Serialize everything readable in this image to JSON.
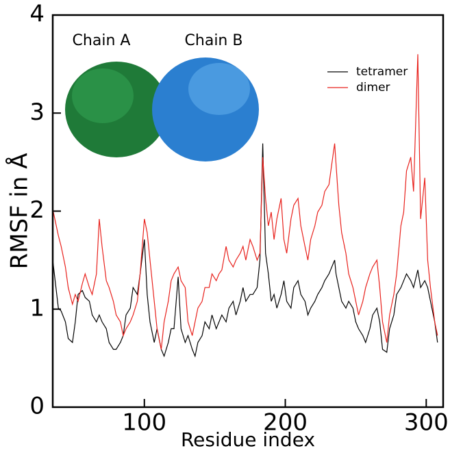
{
  "chart_data": {
    "type": "line",
    "xlabel": "Residue index",
    "ylabel": "RMSF in Å",
    "xlim": [
      35,
      312
    ],
    "xticks": [
      100,
      200,
      300
    ],
    "ylim": [
      0,
      4
    ],
    "yticks": [
      0,
      1,
      2,
      3,
      4
    ],
    "legend": "upper right",
    "annotations": [
      {
        "text": "Chain A"
      },
      {
        "text": "Chain B"
      }
    ],
    "x": [
      35,
      39,
      41,
      44,
      46,
      49,
      51,
      53,
      56,
      58,
      61,
      63,
      66,
      68,
      70,
      73,
      75,
      78,
      80,
      83,
      85,
      87,
      90,
      92,
      95,
      97,
      100,
      102,
      104,
      107,
      109,
      112,
      114,
      117,
      119,
      121,
      124,
      126,
      129,
      131,
      134,
      136,
      138,
      141,
      143,
      146,
      148,
      151,
      153,
      155,
      158,
      160,
      163,
      165,
      168,
      170,
      172,
      175,
      177,
      180,
      182,
      184,
      186,
      188,
      190,
      192,
      194,
      197,
      199,
      201,
      204,
      206,
      209,
      211,
      214,
      216,
      218,
      221,
      223,
      226,
      228,
      231,
      233,
      235,
      236,
      238,
      240,
      243,
      245,
      248,
      250,
      252,
      255,
      257,
      260,
      262,
      265,
      267,
      269,
      272,
      274,
      277,
      279,
      282,
      284,
      286,
      289,
      291,
      294,
      296,
      299,
      301,
      303,
      306,
      308
    ],
    "series": [
      {
        "name": "tetramer",
        "color": "#000000",
        "values": [
          1.5,
          1.01,
          0.98,
          0.87,
          0.7,
          0.66,
          0.87,
          1.15,
          1.19,
          1.12,
          1.08,
          0.94,
          0.87,
          0.94,
          0.87,
          0.8,
          0.66,
          0.59,
          0.59,
          0.66,
          0.73,
          0.94,
          1.01,
          1.22,
          1.15,
          1.36,
          1.71,
          1.15,
          0.87,
          0.66,
          0.8,
          0.59,
          0.52,
          0.66,
          0.8,
          0.8,
          1.33,
          0.8,
          0.66,
          0.73,
          0.59,
          0.52,
          0.66,
          0.73,
          0.87,
          0.8,
          0.94,
          0.8,
          0.87,
          0.94,
          0.87,
          1.01,
          1.08,
          0.94,
          1.08,
          1.22,
          1.08,
          1.15,
          1.15,
          1.22,
          1.5,
          2.69,
          1.57,
          1.36,
          1.08,
          1.15,
          1.01,
          1.15,
          1.29,
          1.08,
          1.01,
          1.22,
          1.29,
          1.15,
          1.08,
          0.94,
          1.01,
          1.08,
          1.15,
          1.22,
          1.29,
          1.36,
          1.43,
          1.5,
          1.36,
          1.22,
          1.08,
          1.01,
          1.08,
          1.01,
          0.87,
          0.8,
          0.73,
          0.66,
          0.8,
          0.94,
          1.01,
          0.87,
          0.59,
          0.56,
          0.8,
          0.94,
          1.15,
          1.22,
          1.29,
          1.36,
          1.29,
          1.22,
          1.4,
          1.22,
          1.29,
          1.22,
          1.08,
          0.87,
          0.66
        ]
      },
      {
        "name": "dimer",
        "color": "#e8211c",
        "values": [
          2.02,
          1.75,
          1.64,
          1.43,
          1.22,
          1.05,
          1.15,
          1.08,
          1.26,
          1.36,
          1.22,
          1.15,
          1.36,
          1.92,
          1.64,
          1.29,
          1.22,
          1.08,
          0.94,
          0.87,
          0.73,
          0.8,
          0.87,
          0.94,
          1.08,
          1.36,
          1.92,
          1.78,
          1.5,
          1.08,
          0.8,
          0.59,
          0.87,
          1.08,
          1.29,
          1.36,
          1.43,
          1.29,
          1.22,
          0.87,
          0.73,
          0.87,
          1.01,
          1.08,
          1.22,
          1.22,
          1.36,
          1.29,
          1.36,
          1.4,
          1.64,
          1.5,
          1.43,
          1.5,
          1.57,
          1.64,
          1.5,
          1.71,
          1.64,
          1.5,
          1.57,
          2.55,
          2.13,
          1.85,
          1.99,
          1.71,
          1.92,
          2.13,
          1.71,
          1.57,
          1.92,
          2.06,
          2.13,
          1.85,
          1.64,
          1.5,
          1.71,
          1.85,
          1.99,
          2.06,
          2.2,
          2.27,
          2.48,
          2.69,
          2.48,
          2.06,
          1.78,
          1.57,
          1.36,
          1.22,
          1.08,
          0.94,
          1.08,
          1.22,
          1.36,
          1.43,
          1.5,
          1.22,
          0.87,
          0.66,
          0.94,
          1.15,
          1.36,
          1.85,
          1.99,
          2.41,
          2.55,
          2.2,
          3.6,
          1.92,
          2.34,
          1.5,
          1.22,
          0.87,
          0.73
        ]
      }
    ]
  }
}
